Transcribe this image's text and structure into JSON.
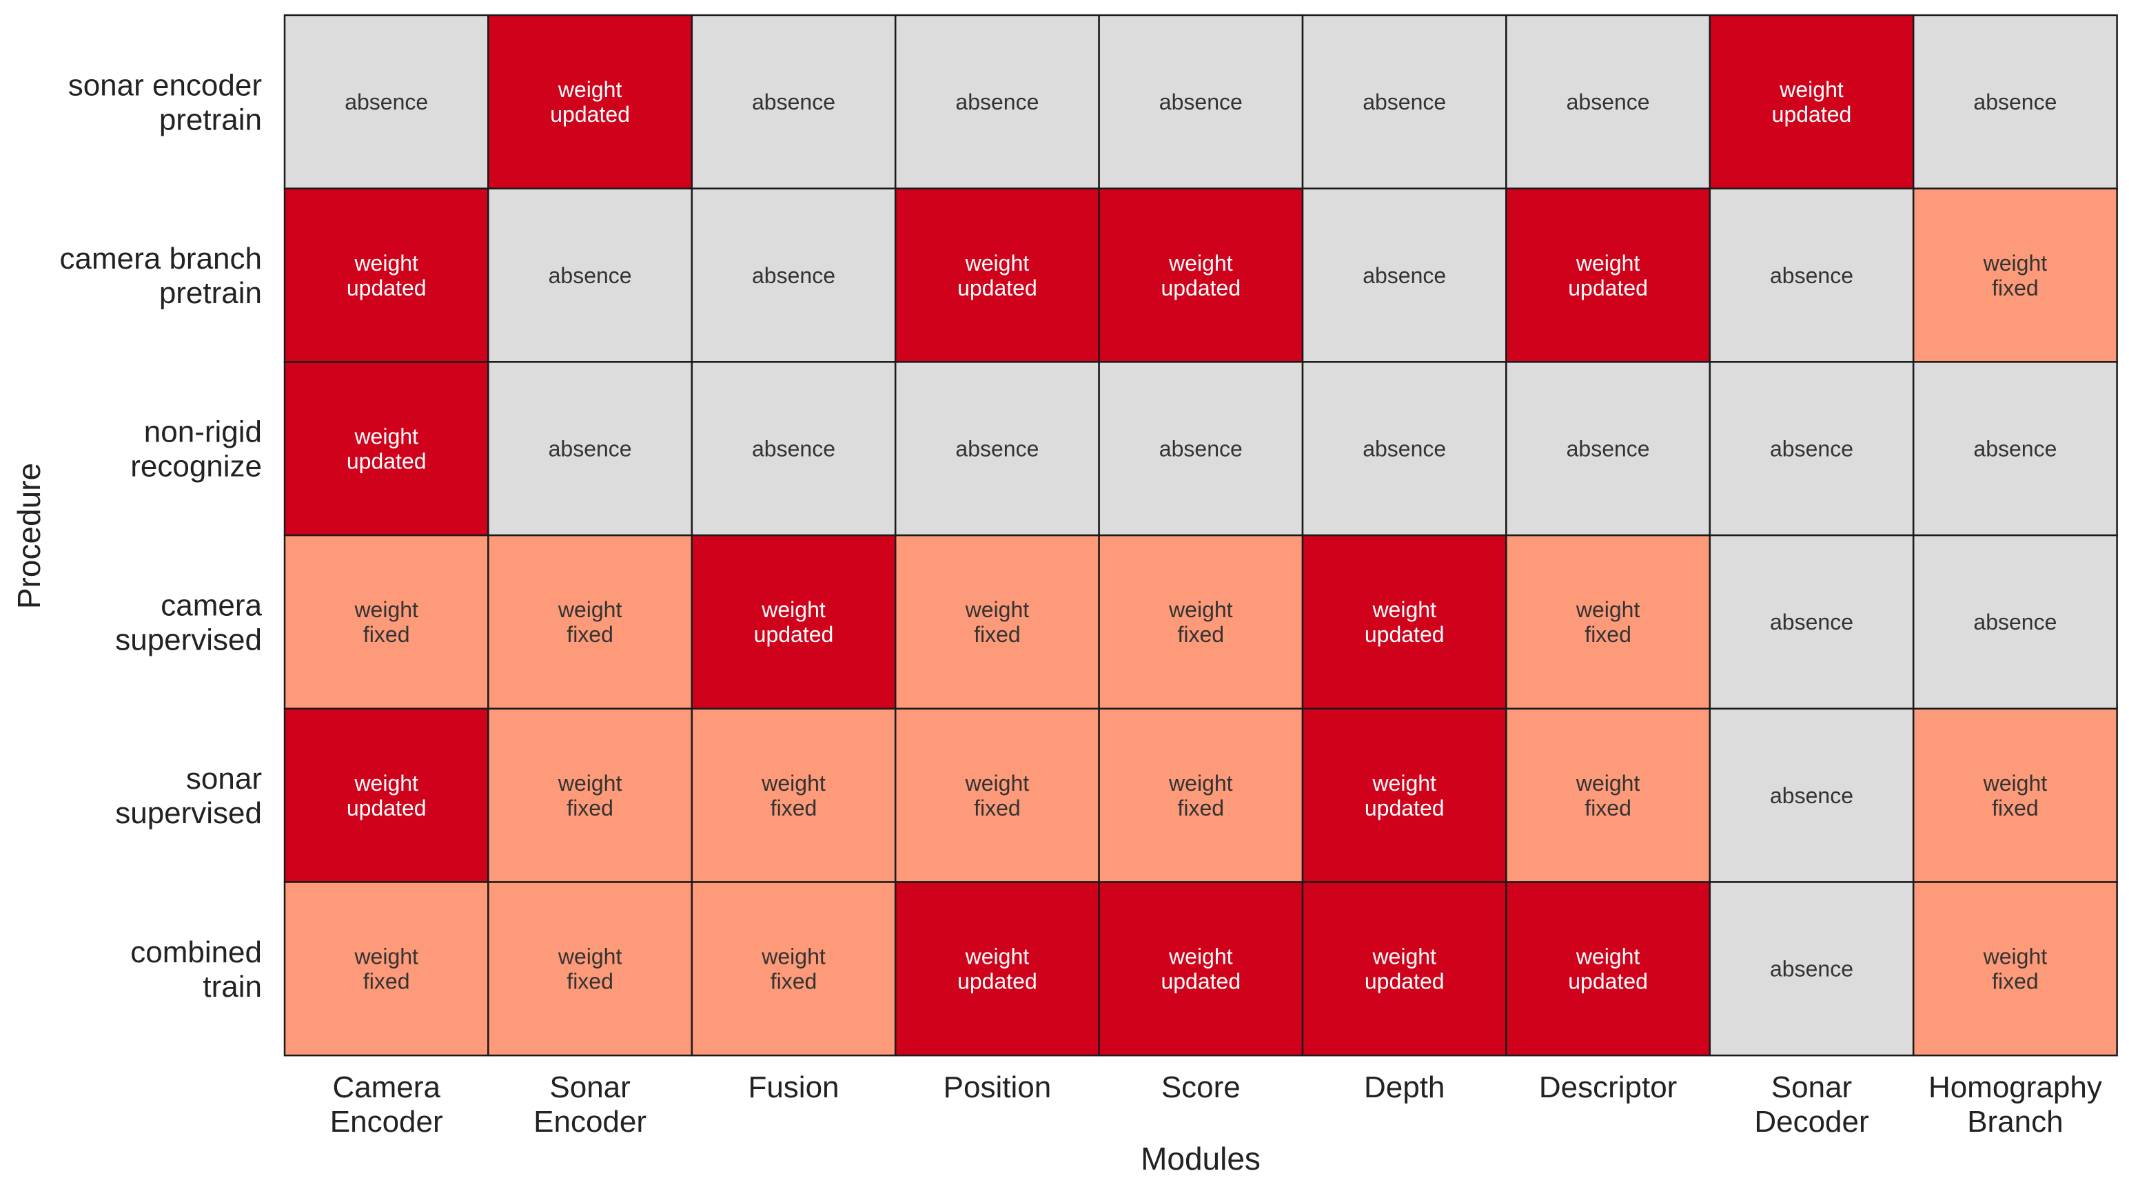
{
  "chart_data": {
    "type": "heatmap",
    "title": "",
    "xlabel": "Modules",
    "ylabel": "Procedure",
    "columns": [
      [
        "Camera",
        "Encoder"
      ],
      [
        "Sonar",
        "Encoder"
      ],
      [
        "Fusion"
      ],
      [
        "Position"
      ],
      [
        "Score"
      ],
      [
        "Depth"
      ],
      [
        "Descriptor"
      ],
      [
        "Sonar",
        "Decoder"
      ],
      [
        "Homography",
        "Branch"
      ]
    ],
    "rows": [
      [
        "sonar encoder",
        "pretrain"
      ],
      [
        "camera branch",
        "pretrain"
      ],
      [
        "non-rigid",
        "recognize"
      ],
      [
        "camera",
        "supervised"
      ],
      [
        "sonar",
        "supervised"
      ],
      [
        "combined",
        "train"
      ]
    ],
    "categories": {
      "absence": {
        "text": [
          "absence"
        ],
        "fill": "#dcdcdc",
        "text_color": "#333333"
      },
      "updated": {
        "text": [
          "weight",
          "updated"
        ],
        "fill": "#d0021b",
        "text_color": "#ffffff"
      },
      "fixed": {
        "text": [
          "weight",
          "fixed"
        ],
        "fill": "#fc9a79",
        "text_color": "#333333"
      }
    },
    "values": [
      [
        "absence",
        "updated",
        "absence",
        "absence",
        "absence",
        "absence",
        "absence",
        "updated",
        "absence"
      ],
      [
        "updated",
        "absence",
        "absence",
        "updated",
        "updated",
        "absence",
        "updated",
        "absence",
        "fixed"
      ],
      [
        "updated",
        "absence",
        "absence",
        "absence",
        "absence",
        "absence",
        "absence",
        "absence",
        "absence"
      ],
      [
        "fixed",
        "fixed",
        "updated",
        "fixed",
        "fixed",
        "updated",
        "fixed",
        "absence",
        "absence"
      ],
      [
        "updated",
        "fixed",
        "fixed",
        "fixed",
        "fixed",
        "updated",
        "fixed",
        "absence",
        "fixed"
      ],
      [
        "fixed",
        "fixed",
        "fixed",
        "updated",
        "updated",
        "updated",
        "updated",
        "absence",
        "fixed"
      ]
    ],
    "colors": {
      "grid": "#1a1a1a",
      "label": "#222222"
    }
  }
}
